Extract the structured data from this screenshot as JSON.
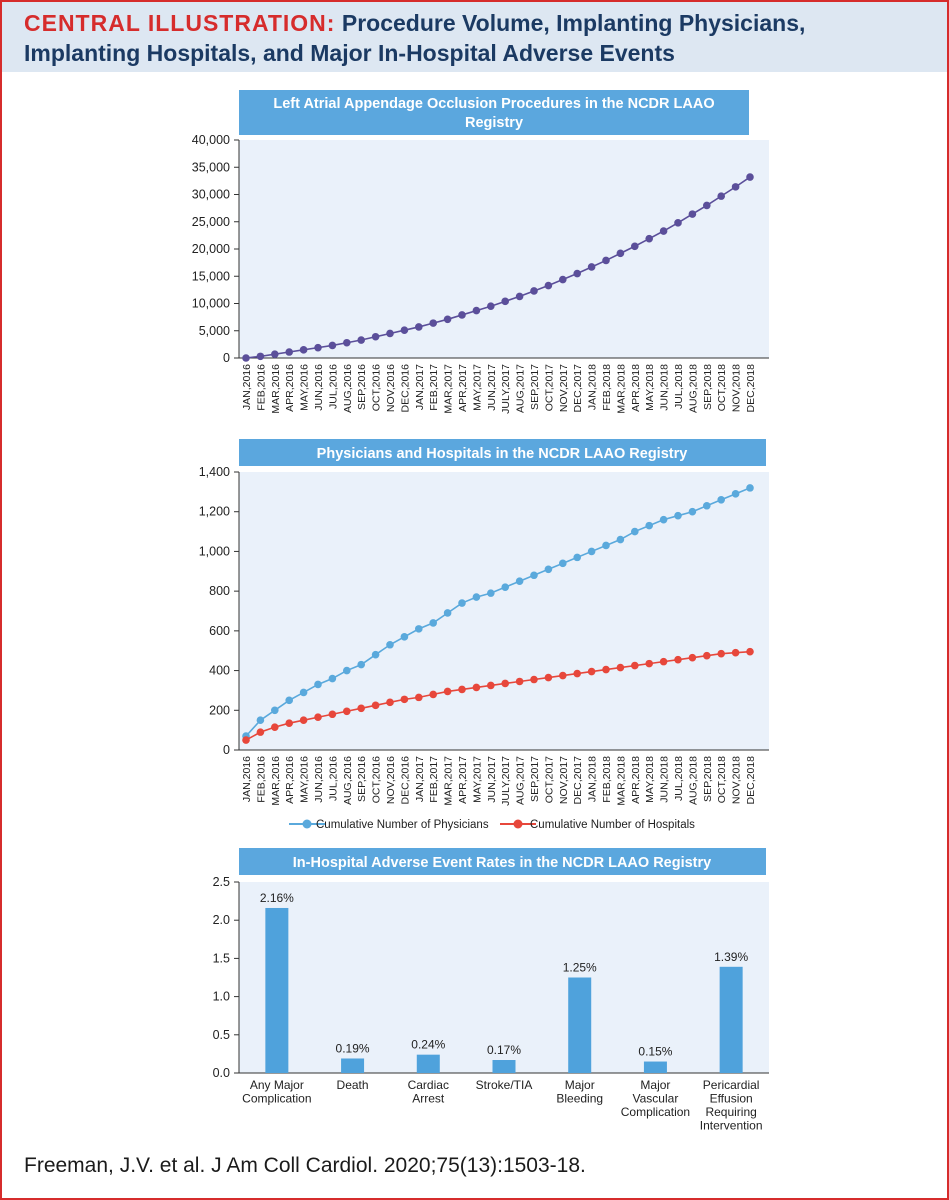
{
  "header": {
    "label": "CENTRAL ILLUSTRATION:",
    "title_line1": "Procedure Volume, Implanting Physicians,",
    "title_line2": "Implanting Hospitals, and Major In-Hospital Adverse Events"
  },
  "footer": {
    "citation": "Freeman, J.V. et al. J Am Coll Cardiol. 2020;75(13):1503-18."
  },
  "colors": {
    "title_bar": "#5ba7de",
    "plot_bg": "#eaf1fa",
    "procedures": "#5b4f9a",
    "physicians": "#5aa9dc",
    "hospitals": "#e7473b",
    "bars": "#4fa2dc"
  },
  "chart_data": [
    {
      "type": "line",
      "title_line1": "Left Atrial Appendage Occlusion Procedures in the NCDR LAAO",
      "title_line2": "Registry",
      "ylim": [
        0,
        40000
      ],
      "yticks": [
        0,
        5000,
        10000,
        15000,
        20000,
        25000,
        30000,
        35000,
        40000
      ],
      "ytick_labels": [
        "0",
        "5,000",
        "10,000",
        "15,000",
        "20,000",
        "25,000",
        "30,000",
        "35,000",
        "40,000"
      ],
      "categories": [
        "JAN,2016",
        "FEB,2016",
        "MAR,2016",
        "APR,2016",
        "MAY,2016",
        "JUN,2016",
        "JUL,2016",
        "AUG,2016",
        "SEP,2016",
        "OCT,2016",
        "NOV,2016",
        "DEC,2016",
        "JAN,2017",
        "FEB,2017",
        "MAR,2017",
        "APR,2017",
        "MAY,2017",
        "JUN,2017",
        "JULY,2017",
        "AUG,2017",
        "SEP,2017",
        "OCT,2017",
        "NOV,2017",
        "DEC,2017",
        "JAN,2018",
        "FEB,2018",
        "MAR,2018",
        "APR,2018",
        "MAY,2018",
        "JUN,2018",
        "JUL,2018",
        "AUG,2018",
        "SEP,2018",
        "OCT,2018",
        "NOV,2018",
        "DEC,2018"
      ],
      "series": [
        {
          "name": "Procedures",
          "values": [
            0,
            300,
            700,
            1100,
            1500,
            1900,
            2300,
            2800,
            3300,
            3900,
            4500,
            5100,
            5700,
            6400,
            7100,
            7900,
            8700,
            9500,
            10400,
            11300,
            12300,
            13300,
            14400,
            15500,
            16700,
            17900,
            19200,
            20500,
            21900,
            23300,
            24800,
            26400,
            28000,
            29700,
            31400,
            33200
          ]
        }
      ]
    },
    {
      "type": "line",
      "title": "Physicians and Hospitals in the NCDR LAAO Registry",
      "ylim": [
        0,
        1400
      ],
      "yticks": [
        0,
        200,
        400,
        600,
        800,
        1000,
        1200,
        1400
      ],
      "ytick_labels": [
        "0",
        "200",
        "400",
        "600",
        "800",
        "1,000",
        "1,200",
        "1,400"
      ],
      "categories": [
        "JAN,2016",
        "FEB,2016",
        "MAR,2016",
        "APR,2016",
        "MAY,2016",
        "JUN,2016",
        "JUL,2016",
        "AUG,2016",
        "SEP,2016",
        "OCT,2016",
        "NOV,2016",
        "DEC,2016",
        "JAN,2017",
        "FEB,2017",
        "MAR,2017",
        "APR,2017",
        "MAY,2017",
        "JUN,2017",
        "JULY,2017",
        "AUG,2017",
        "SEP,2017",
        "OCT,2017",
        "NOV,2017",
        "DEC,2017",
        "JAN,2018",
        "FEB,2018",
        "MAR,2018",
        "APR,2018",
        "MAY,2018",
        "JUN,2018",
        "JUL,2018",
        "AUG,2018",
        "SEP,2018",
        "OCT,2018",
        "NOV,2018",
        "DEC,2018"
      ],
      "series": [
        {
          "name": "Cumulative Number of Physicians",
          "values": [
            70,
            150,
            200,
            250,
            290,
            330,
            360,
            400,
            430,
            480,
            530,
            570,
            610,
            640,
            690,
            740,
            770,
            790,
            820,
            850,
            880,
            910,
            940,
            970,
            1000,
            1030,
            1060,
            1100,
            1130,
            1160,
            1180,
            1200,
            1230,
            1260,
            1290,
            1320
          ]
        },
        {
          "name": "Cumulative Number of Hospitals",
          "values": [
            50,
            90,
            115,
            135,
            150,
            165,
            180,
            195,
            210,
            225,
            240,
            255,
            265,
            280,
            295,
            305,
            315,
            325,
            335,
            345,
            355,
            365,
            375,
            385,
            395,
            405,
            415,
            425,
            435,
            445,
            455,
            465,
            475,
            485,
            490,
            495
          ]
        }
      ],
      "legend": "bottom"
    },
    {
      "type": "bar",
      "title": "In-Hospital Adverse Event Rates in the NCDR LAAO Registry",
      "ylim": [
        0,
        2.5
      ],
      "yticks": [
        0,
        0.5,
        1.0,
        1.5,
        2.0,
        2.5
      ],
      "ytick_labels": [
        "0.0",
        "0.5",
        "1.0",
        "1.5",
        "2.0",
        "2.5"
      ],
      "categories": [
        [
          "Any Major",
          "Complication"
        ],
        [
          "Death"
        ],
        [
          "Cardiac",
          "Arrest"
        ],
        [
          "Stroke/TIA"
        ],
        [
          "Major",
          "Bleeding"
        ],
        [
          "Major",
          "Vascular",
          "Complication"
        ],
        [
          "Pericardial",
          "Effusion",
          "Requiring",
          "Intervention"
        ]
      ],
      "values": [
        2.16,
        0.19,
        0.24,
        0.17,
        1.25,
        0.15,
        1.39
      ],
      "data_labels": [
        "2.16%",
        "0.19%",
        "0.24%",
        "0.17%",
        "1.25%",
        "0.15%",
        "1.39%"
      ]
    }
  ]
}
